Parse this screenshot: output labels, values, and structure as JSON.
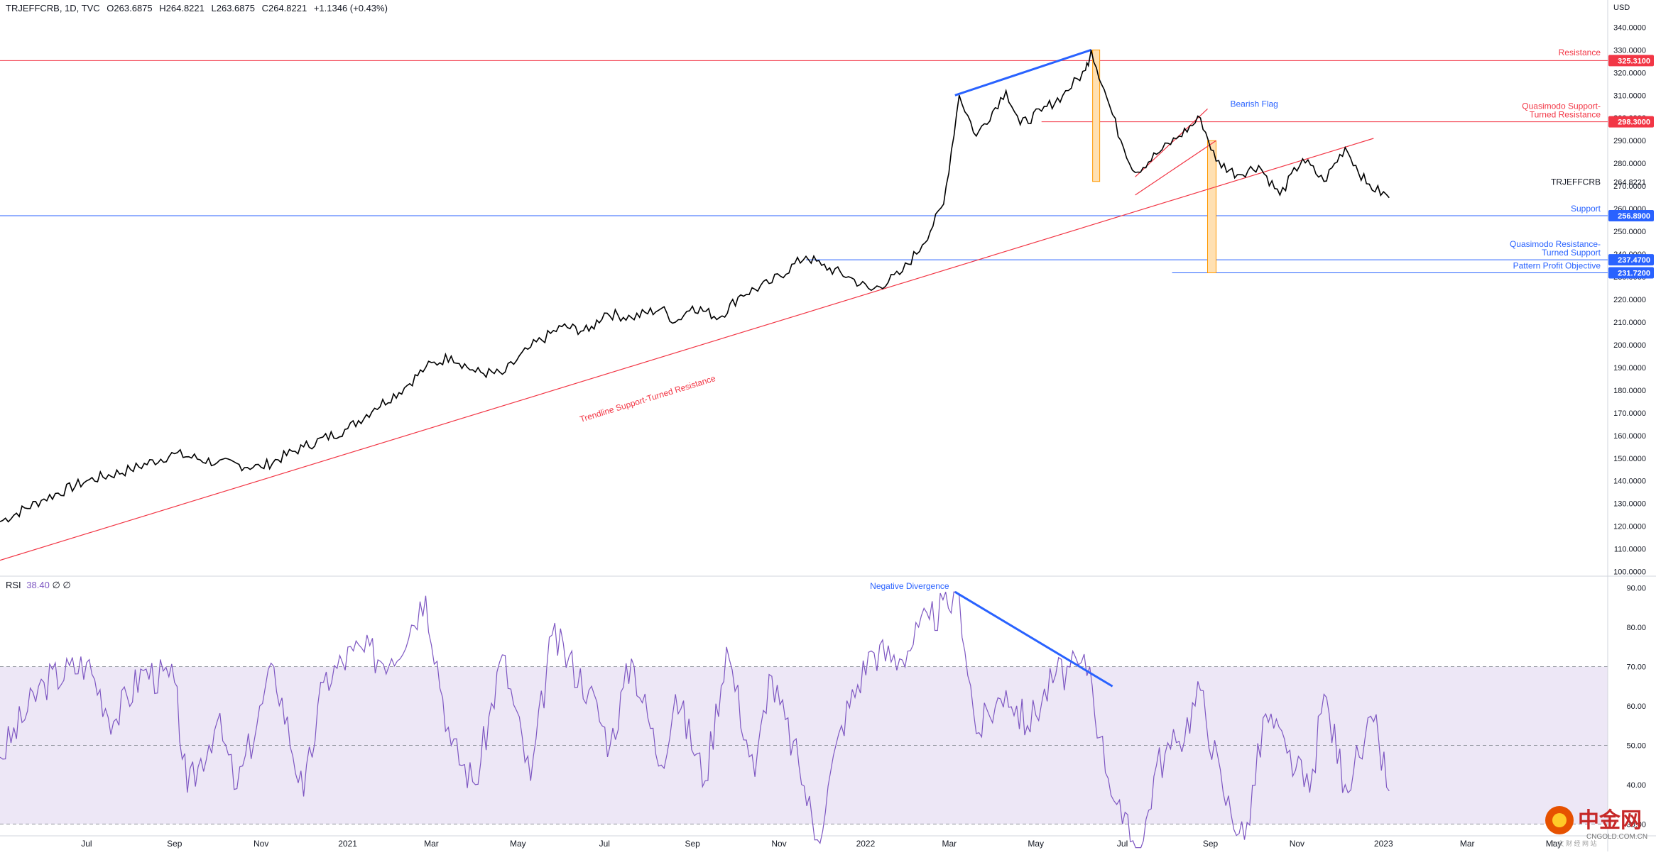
{
  "header": {
    "symbol": "TRJEFFCRB, 1D, TVC",
    "open": "O263.6875",
    "high": "H264.8221",
    "low": "L263.6875",
    "close": "C264.8221",
    "change": "+1.1346 (+0.43%)"
  },
  "axis": {
    "currency": "USD"
  },
  "rsi_header": {
    "label": "RSI",
    "value": "38.40",
    "extra": "∅ ∅"
  },
  "watermark": {
    "text": "中金网",
    "sub": "CNGOLD.COM.CN",
    "sub2": "中 文 财 经 网 站"
  },
  "colors": {
    "resistance": "#f23645",
    "support": "#2962ff",
    "price": "#000000",
    "rsi": "#7e57c2",
    "rsi_band": "#ede7f6",
    "orange_fill": "#ffe0b2",
    "orange_stroke": "#ff9800",
    "grid_text": "#131722",
    "axis_line": "#d1d4dc"
  },
  "chart_data": [
    {
      "type": "line",
      "title": "TRJEFFCRB, 1D, TVC",
      "xlabel": "",
      "ylabel": "USD",
      "ylim": [
        98,
        352
      ],
      "y_ticks": [
        100,
        110,
        120,
        130,
        140,
        150,
        160,
        170,
        180,
        190,
        200,
        210,
        220,
        230,
        240,
        250,
        260,
        270,
        280,
        290,
        300,
        310,
        320,
        330,
        340
      ],
      "x_ticks": [
        "Jul",
        "Sep",
        "Nov",
        "2021",
        "Mar",
        "May",
        "Jul",
        "Sep",
        "Nov",
        "2022",
        "Mar",
        "May",
        "Jul",
        "Sep",
        "Nov",
        "2023",
        "Mar",
        "May"
      ],
      "x_tick_dates": [
        "2020-07-01",
        "2020-09-01",
        "2020-11-01",
        "2021-01-01",
        "2021-03-01",
        "2021-05-01",
        "2021-07-01",
        "2021-09-01",
        "2021-11-01",
        "2022-01-01",
        "2022-03-01",
        "2022-05-01",
        "2022-07-01",
        "2022-09-01",
        "2022-11-01",
        "2023-01-01",
        "2023-03-01",
        "2023-05-01"
      ],
      "x_range": [
        "2020-05-01",
        "2023-06-08"
      ],
      "series": [
        {
          "name": "TRJEFFCRB",
          "x": [
            "2020-05-01",
            "2020-06-01",
            "2020-07-01",
            "2020-08-01",
            "2020-09-01",
            "2020-10-01",
            "2020-11-01",
            "2020-12-01",
            "2021-01-01",
            "2021-01-20",
            "2021-02-10",
            "2021-02-25",
            "2021-03-15",
            "2021-04-01",
            "2021-04-20",
            "2021-05-10",
            "2021-06-01",
            "2021-06-20",
            "2021-07-01",
            "2021-07-20",
            "2021-08-10",
            "2021-08-20",
            "2021-09-01",
            "2021-09-20",
            "2021-10-05",
            "2021-10-25",
            "2021-11-20",
            "2021-12-01",
            "2021-12-20",
            "2022-01-05",
            "2022-01-25",
            "2022-02-10",
            "2022-02-25",
            "2022-03-08",
            "2022-03-20",
            "2022-04-10",
            "2022-04-20",
            "2022-05-05",
            "2022-05-20",
            "2022-06-05",
            "2022-06-09",
            "2022-06-20",
            "2022-06-30",
            "2022-07-10",
            "2022-07-25",
            "2022-08-10",
            "2022-08-25",
            "2022-09-05",
            "2022-09-20",
            "2022-10-05",
            "2022-10-20",
            "2022-11-05",
            "2022-11-20",
            "2022-12-05",
            "2022-12-20",
            "2023-01-05"
          ],
          "y": [
            122,
            132,
            140,
            145,
            152,
            148,
            146,
            155,
            163,
            172,
            181,
            190,
            195,
            188,
            187,
            199,
            208,
            206,
            214,
            212,
            216,
            210,
            217,
            212,
            222,
            227,
            239,
            235,
            230,
            224,
            231,
            244,
            262,
            310,
            292,
            312,
            297,
            303,
            310,
            321,
            330,
            309,
            290,
            276,
            284,
            292,
            300,
            281,
            275,
            279,
            266,
            282,
            272,
            287,
            271,
            264.82
          ]
        },
        {
          "name": "RSI",
          "x": [
            "2020-05-01",
            "2020-06-01",
            "2020-07-01",
            "2020-07-20",
            "2020-08-10",
            "2020-09-01",
            "2020-09-10",
            "2020-10-01",
            "2020-10-15",
            "2020-11-10",
            "2020-12-01",
            "2020-12-15",
            "2021-01-05",
            "2021-02-01",
            "2021-02-25",
            "2021-03-15",
            "2021-04-01",
            "2021-04-20",
            "2021-05-10",
            "2021-05-25",
            "2021-06-20",
            "2021-07-05",
            "2021-07-20",
            "2021-08-10",
            "2021-08-20",
            "2021-09-10",
            "2021-09-25",
            "2021-10-15",
            "2021-10-25",
            "2021-11-15",
            "2021-11-28",
            "2021-12-15",
            "2022-01-05",
            "2022-01-25",
            "2022-02-15",
            "2022-03-08",
            "2022-03-20",
            "2022-04-10",
            "2022-04-25",
            "2022-05-15",
            "2022-06-08",
            "2022-06-15",
            "2022-07-01",
            "2022-07-14",
            "2022-07-25",
            "2022-08-10",
            "2022-08-25",
            "2022-09-10",
            "2022-09-25",
            "2022-10-10",
            "2022-10-25",
            "2022-11-10",
            "2022-11-20",
            "2022-12-05",
            "2022-12-15",
            "2022-12-25",
            "2023-01-05"
          ],
          "y": [
            47,
            66,
            71,
            56,
            69,
            66,
            38,
            56,
            39,
            70,
            37,
            66,
            74,
            72,
            88,
            50,
            40,
            73,
            41,
            78,
            64,
            50,
            72,
            45,
            63,
            41,
            75,
            42,
            68,
            45,
            26,
            55,
            74,
            72,
            82,
            88,
            53,
            64,
            55,
            68,
            70,
            52,
            30,
            23,
            45,
            51,
            64,
            38,
            26,
            58,
            48,
            38,
            63,
            40,
            47,
            56,
            38.4
          ]
        }
      ],
      "trendlines": [
        {
          "label": "Trendline Support-Turned Resistance",
          "color": "red",
          "from": [
            "2020-05-01",
            105
          ],
          "to": [
            "2022-12-25",
            291
          ]
        },
        {
          "label": "Bearish Flag",
          "color": "red",
          "from": [
            "2022-07-10",
            274
          ],
          "to": [
            "2022-08-30",
            304
          ]
        },
        {
          "label": "",
          "color": "red",
          "from": [
            "2022-07-10",
            266
          ],
          "to": [
            "2022-09-05",
            290
          ]
        },
        {
          "label": "",
          "color": "blue",
          "from": [
            "2022-03-05",
            310
          ],
          "to": [
            "2022-06-09",
            330
          ]
        }
      ],
      "boxes": [
        {
          "from": [
            "2022-06-10",
            272
          ],
          "to": [
            "2022-06-15",
            330
          ]
        },
        {
          "from": [
            "2022-08-30",
            231.72
          ],
          "to": [
            "2022-09-05",
            290
          ]
        }
      ],
      "horizontal_levels": [
        {
          "label": "Resistance",
          "value": "325.3100",
          "color": "red",
          "start": "2020-05-01"
        },
        {
          "label": "Quasimodo Support-Turned Resistance",
          "value": "298.3000",
          "color": "red",
          "start": "2022-05-05"
        },
        {
          "label": "Support",
          "value": "256.8900",
          "color": "blue",
          "start": "2020-05-01"
        },
        {
          "label": "Quasimodo Resistance-Turned Support",
          "value": "237.4700",
          "color": "blue",
          "start": "2021-11-20"
        },
        {
          "label": "Pattern Profit Objective",
          "value": "231.7200",
          "color": "blue",
          "start": "2022-08-05"
        }
      ],
      "last_price": {
        "label": "TRJEFFCRB",
        "value": "264.8221"
      },
      "annotations": [
        "Resistance",
        "Quasimodo Support-",
        "Turned Resistance",
        "Bearish Flag",
        "Support",
        "Quasimodo Resistance-",
        "Turned Support",
        "Pattern Profit Objective",
        "Trendline Support-Turned Resistance"
      ],
      "grid": false
    },
    {
      "type": "line",
      "title": "RSI",
      "ylim": [
        27,
        93
      ],
      "y_ticks": [
        30,
        40,
        50,
        60,
        70,
        80,
        90
      ],
      "bands": {
        "lower": 30,
        "middle": 50,
        "upper": 70
      },
      "annotations": [
        "Negative Divergence"
      ],
      "divergence_line": {
        "from": [
          "2022-03-05",
          89
        ],
        "to": [
          "2022-06-24",
          65
        ]
      },
      "grid": false
    }
  ]
}
